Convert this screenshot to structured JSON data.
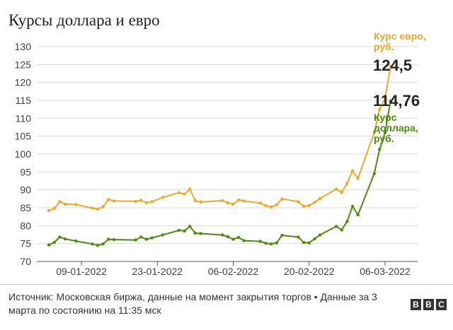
{
  "title": "Курсы доллара и евро",
  "source": "Источник: Московская биржа, данные на момент закрытия торгов • Данные за 3 марта по состоянию на 11:35 мск",
  "logo": [
    "B",
    "B",
    "C"
  ],
  "colors": {
    "euro": "#f5a623",
    "dollar": "#4e8a0c",
    "grid": "#d9d9d9",
    "text": "#222222"
  },
  "chart_data": {
    "type": "line",
    "title": "Курсы доллара и евро",
    "xlabel": "",
    "ylabel": "",
    "x_ticks": [
      "09-01-2022",
      "23-01-2022",
      "06-02-2022",
      "20-02-2022",
      "06-03-2022"
    ],
    "x_range": [
      "2022-01-03",
      "2022-03-06"
    ],
    "ylim": [
      70,
      130
    ],
    "y_ticks": [
      70,
      75,
      80,
      85,
      90,
      95,
      100,
      105,
      110,
      115,
      120,
      125,
      130
    ],
    "grid": true,
    "legend": "end labels on right",
    "series": [
      {
        "name": "Курс евро, руб.",
        "end_label": "124,5",
        "points": [
          [
            "2022-01-03",
            84.2
          ],
          [
            "2022-01-04",
            84.8
          ],
          [
            "2022-01-05",
            86.7
          ],
          [
            "2022-01-06",
            86.0
          ],
          [
            "2022-01-08",
            85.9
          ],
          [
            "2022-01-11",
            84.9
          ],
          [
            "2022-01-12",
            84.6
          ],
          [
            "2022-01-13",
            85.3
          ],
          [
            "2022-01-14",
            87.3
          ],
          [
            "2022-01-15",
            86.9
          ],
          [
            "2022-01-19",
            86.8
          ],
          [
            "2022-01-20",
            87.1
          ],
          [
            "2022-01-21",
            86.4
          ],
          [
            "2022-01-22",
            86.7
          ],
          [
            "2022-01-24",
            87.9
          ],
          [
            "2022-01-27",
            89.2
          ],
          [
            "2022-01-28",
            88.8
          ],
          [
            "2022-01-29",
            90.2
          ],
          [
            "2022-01-30",
            87.0
          ],
          [
            "2022-01-31",
            86.6
          ],
          [
            "2022-02-04",
            87.0
          ],
          [
            "2022-02-05",
            86.4
          ],
          [
            "2022-02-06",
            86.0
          ],
          [
            "2022-02-07",
            87.2
          ],
          [
            "2022-02-08",
            86.9
          ],
          [
            "2022-02-11",
            86.3
          ],
          [
            "2022-02-12",
            85.6
          ],
          [
            "2022-02-13",
            85.2
          ],
          [
            "2022-02-14",
            85.8
          ],
          [
            "2022-02-15",
            87.5
          ],
          [
            "2022-02-18",
            86.7
          ],
          [
            "2022-02-19",
            85.4
          ],
          [
            "2022-02-20",
            85.6
          ],
          [
            "2022-02-21",
            86.5
          ],
          [
            "2022-02-22",
            87.6
          ],
          [
            "2022-02-25",
            90.2
          ],
          [
            "2022-02-26",
            89.3
          ],
          [
            "2022-02-27",
            91.8
          ],
          [
            "2022-02-28",
            95.3
          ],
          [
            "2022-03-01",
            93.2
          ],
          [
            "2022-03-04",
            106.0
          ],
          [
            "2022-03-05",
            112.5
          ],
          [
            "2022-03-06",
            115.5
          ],
          [
            "2022-03-07",
            124.5
          ]
        ]
      },
      {
        "name": "Курс доллара, руб.",
        "end_label": "114,76",
        "points": [
          [
            "2022-01-03",
            74.6
          ],
          [
            "2022-01-04",
            75.3
          ],
          [
            "2022-01-05",
            76.8
          ],
          [
            "2022-01-06",
            76.3
          ],
          [
            "2022-01-08",
            75.7
          ],
          [
            "2022-01-11",
            74.9
          ],
          [
            "2022-01-12",
            74.5
          ],
          [
            "2022-01-13",
            74.9
          ],
          [
            "2022-01-14",
            76.2
          ],
          [
            "2022-01-15",
            76.1
          ],
          [
            "2022-01-19",
            76.0
          ],
          [
            "2022-01-20",
            76.8
          ],
          [
            "2022-01-21",
            76.2
          ],
          [
            "2022-01-22",
            76.6
          ],
          [
            "2022-01-24",
            77.4
          ],
          [
            "2022-01-27",
            78.7
          ],
          [
            "2022-01-28",
            78.5
          ],
          [
            "2022-01-29",
            79.8
          ],
          [
            "2022-01-30",
            77.9
          ],
          [
            "2022-01-31",
            77.8
          ],
          [
            "2022-02-04",
            77.4
          ],
          [
            "2022-02-05",
            76.9
          ],
          [
            "2022-02-06",
            76.2
          ],
          [
            "2022-02-07",
            76.7
          ],
          [
            "2022-02-08",
            75.8
          ],
          [
            "2022-02-11",
            75.6
          ],
          [
            "2022-02-12",
            75.1
          ],
          [
            "2022-02-13",
            74.9
          ],
          [
            "2022-02-14",
            75.2
          ],
          [
            "2022-02-15",
            77.3
          ],
          [
            "2022-02-18",
            76.8
          ],
          [
            "2022-02-19",
            75.3
          ],
          [
            "2022-02-20",
            75.2
          ],
          [
            "2022-02-21",
            76.3
          ],
          [
            "2022-02-22",
            77.4
          ],
          [
            "2022-02-25",
            79.8
          ],
          [
            "2022-02-26",
            78.8
          ],
          [
            "2022-02-27",
            81.2
          ],
          [
            "2022-02-28",
            85.4
          ],
          [
            "2022-03-01",
            83.0
          ],
          [
            "2022-03-04",
            94.5
          ],
          [
            "2022-03-05",
            101.3
          ],
          [
            "2022-03-06",
            106.0
          ],
          [
            "2022-03-07",
            114.76
          ]
        ]
      }
    ]
  }
}
